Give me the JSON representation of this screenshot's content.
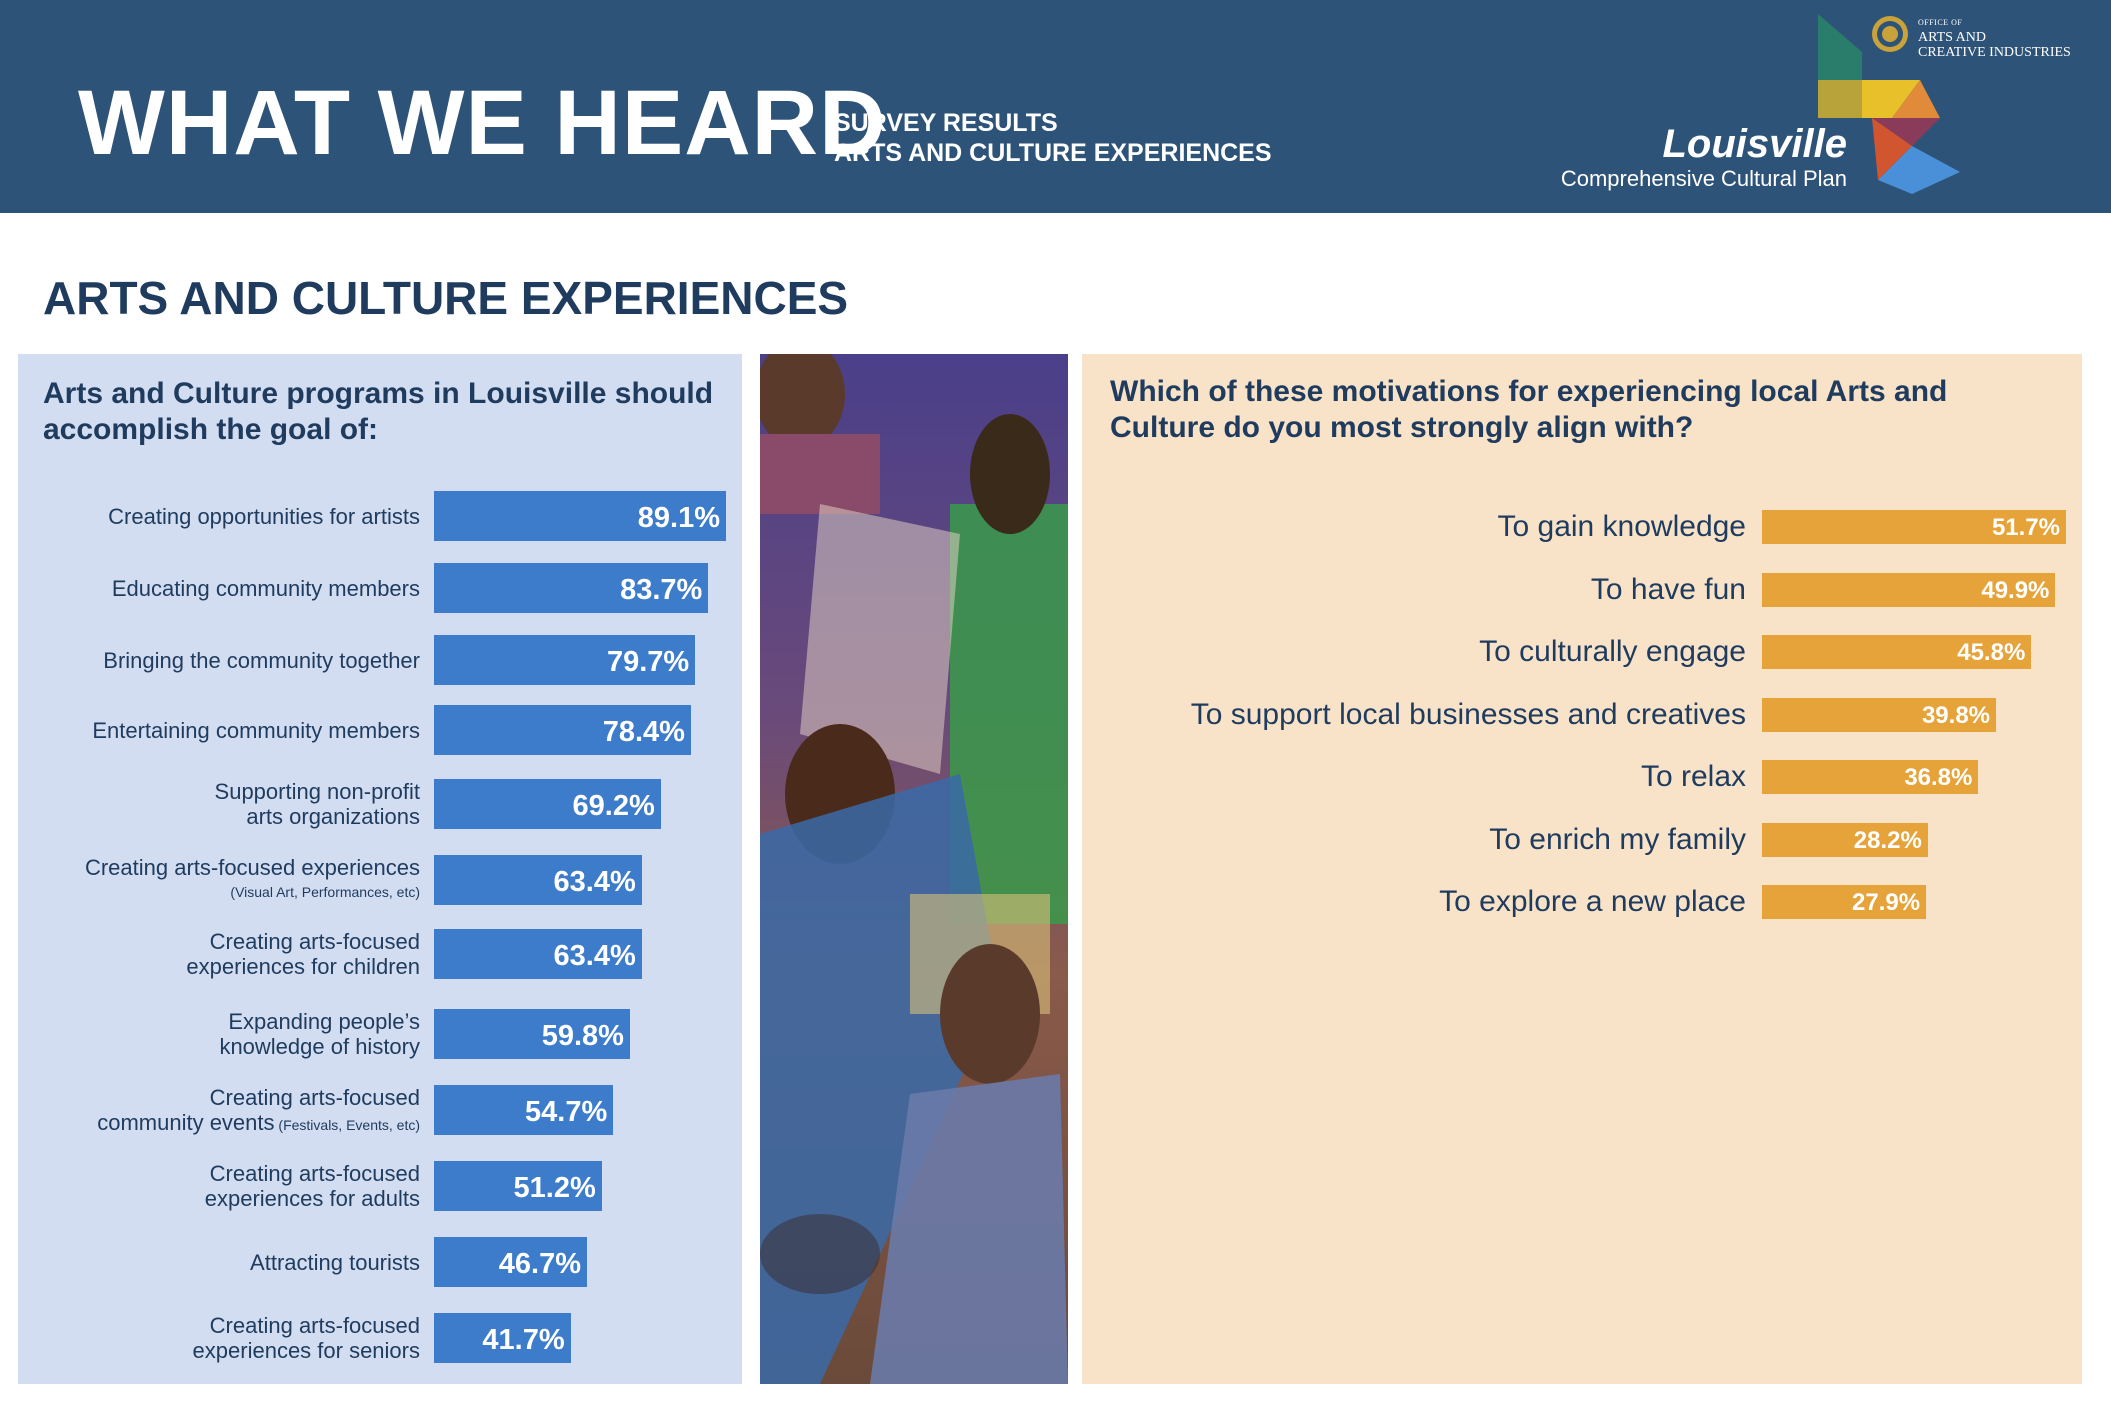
{
  "header": {
    "title": "WHAT WE HEARD",
    "subtitle_line1": "SURVEY RESULTS",
    "subtitle_line2": "ARTS AND CULTURE EXPERIENCES",
    "brand_name": "Louisville",
    "brand_sub": "Comprehensive Cultural Plan",
    "office_line1": "OFFICE OF",
    "office_line2": "ARTS AND",
    "office_line3": "CREATIVE INDUSTRIES",
    "color": "#2e5378"
  },
  "section_title": "ARTS AND CULTURE EXPERIENCES",
  "colors": {
    "left_panel": "#d2ddf1",
    "left_bar": "#3d7ccb",
    "right_panel": "#f8e3c9",
    "right_bar": "#e5a33a",
    "heading_text": "#1f3b5e"
  },
  "chart_data": [
    {
      "type": "bar",
      "orientation": "horizontal",
      "title": "Arts and Culture programs in Louisville should accomplish the goal of:",
      "categories": [
        "Creating opportunities for artists",
        "Educating community members",
        "Bringing the community together",
        "Entertaining community members",
        "Supporting non-profit arts organizations",
        "Creating arts-focused experiences (Visual Art, Performances, etc)",
        "Creating arts-focused experiences for children",
        "Expanding people’s knowledge of history",
        "Creating arts-focused community events (Festivals, Events, etc)",
        "Creating arts-focused experiences for adults",
        "Attracting tourists",
        "Creating arts-focused experiences for seniors"
      ],
      "label_lines": [
        [
          "Creating opportunities for artists"
        ],
        [
          "Educating community members"
        ],
        [
          "Bringing the community together"
        ],
        [
          "Entertaining community members"
        ],
        [
          "Supporting non-profit",
          "arts organizations"
        ],
        [
          "Creating arts-focused experiences",
          "(Visual Art, Performances, etc)"
        ],
        [
          "Creating arts-focused",
          "experiences for children"
        ],
        [
          "Expanding people’s",
          "knowledge of history"
        ],
        [
          "Creating arts-focused",
          "community events (Festivals, Events, etc)"
        ],
        [
          "Creating arts-focused",
          "experiences for adults"
        ],
        [
          "Attracting tourists"
        ],
        [
          "Creating arts-focused",
          "experiences for seniors"
        ]
      ],
      "values": [
        89.1,
        83.7,
        79.7,
        78.4,
        69.2,
        63.4,
        63.4,
        59.8,
        54.7,
        51.2,
        46.7,
        41.7
      ],
      "value_labels": [
        "89.1%",
        "83.7%",
        "79.7%",
        "78.4%",
        "69.2%",
        "63.4%",
        "63.4%",
        "59.8%",
        "54.7%",
        "51.2%",
        "46.7%",
        "41.7%"
      ],
      "unit": "%"
    },
    {
      "type": "bar",
      "orientation": "horizontal",
      "title": "Which of these motivations for experiencing local Arts and Culture do you most strongly align with?",
      "categories": [
        "To gain knowledge",
        "To have fun",
        "To culturally engage",
        "To support local businesses and creatives",
        "To relax",
        "To enrich my family",
        "To explore a new place"
      ],
      "values": [
        51.7,
        49.9,
        45.8,
        39.8,
        36.8,
        28.2,
        27.9
      ],
      "value_labels": [
        "51.7%",
        "49.9%",
        "45.8%",
        "39.8%",
        "36.8%",
        "28.2%",
        "27.9%"
      ],
      "unit": "%"
    }
  ]
}
